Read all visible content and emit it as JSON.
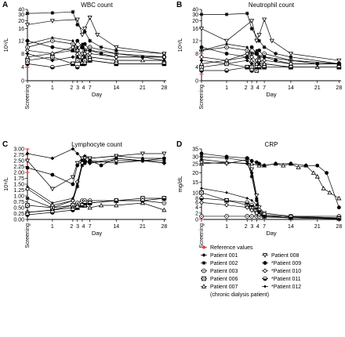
{
  "figure": {
    "panels": [
      "A",
      "B",
      "C",
      "D"
    ],
    "reference_label": "Reference values",
    "legend": [
      {
        "label": "Patient 001",
        "marker": "filled-diamond"
      },
      {
        "label": "Patient 002",
        "marker": "filled-star"
      },
      {
        "label": "Patient 003",
        "marker": "open-circle-dot"
      },
      {
        "label": "Patient 006",
        "marker": "open-square-x"
      },
      {
        "label": "Patient 007",
        "marker": "open-triangle",
        "note": "(chronic dialysis patient)"
      },
      {
        "label": "Patient 008",
        "marker": "open-down-triangle"
      },
      {
        "label": "*Patient 009",
        "marker": "filled-circle"
      },
      {
        "label": "*Patient 010",
        "marker": "open-diamond"
      },
      {
        "label": "*Patient 011",
        "marker": "half-circle"
      },
      {
        "label": "*Patient 012",
        "marker": "filled-small-diamond"
      }
    ],
    "colors": {
      "line": "#000000",
      "reference": "#e8413a"
    }
  },
  "chart_data": [
    {
      "panel": "A",
      "type": "line",
      "title": "WBC count",
      "ylabel": "10⁹/L",
      "xlabel": "Day",
      "x_ticks": [
        "Screening",
        "1",
        "2",
        "3",
        "4",
        "7",
        "14",
        "21",
        "28"
      ],
      "y_ticks": [
        "0",
        "4",
        "8",
        "12",
        "16",
        "20",
        "30",
        "40"
      ],
      "reference_range": [
        4,
        10
      ],
      "series": [
        {
          "x": [
            0,
            1,
            2,
            3,
            4,
            5,
            7,
            14,
            28
          ],
          "y": [
            8,
            6,
            7,
            7,
            6,
            7,
            7,
            6,
            6
          ]
        },
        {
          "x": [
            0,
            1,
            2,
            3,
            5,
            7,
            10,
            14,
            28
          ],
          "y": [
            32,
            33,
            35,
            18,
            15,
            12,
            10,
            9,
            8
          ]
        },
        {
          "x": [
            0,
            1,
            2,
            3,
            4,
            5,
            7,
            14,
            28
          ],
          "y": [
            10,
            12,
            11,
            9,
            10,
            9,
            10,
            8,
            7
          ]
        },
        {
          "x": [
            0,
            1,
            2,
            3,
            4,
            5,
            7,
            14,
            28
          ],
          "y": [
            6,
            7,
            5,
            6,
            5,
            6,
            6,
            5,
            5
          ]
        },
        {
          "x": [
            0,
            1,
            2,
            3,
            4,
            5,
            7,
            14,
            21,
            28
          ],
          "y": [
            7,
            8,
            9,
            8,
            7,
            8,
            7,
            6,
            6,
            6
          ]
        },
        {
          "x": [
            0,
            1,
            3,
            4,
            5,
            7,
            9,
            14,
            28
          ],
          "y": [
            18,
            20,
            22,
            14,
            16,
            25,
            14,
            10,
            8
          ]
        },
        {
          "x": [
            0,
            1,
            2,
            3,
            4,
            5,
            7,
            10,
            14,
            21,
            28
          ],
          "y": [
            12,
            10,
            9,
            12,
            10,
            11,
            9,
            8,
            7,
            7,
            7
          ]
        },
        {
          "x": [
            0,
            1,
            2,
            3,
            4,
            5,
            7,
            14,
            28
          ],
          "y": [
            9,
            8,
            10,
            9,
            8,
            8,
            8,
            7,
            7
          ]
        },
        {
          "x": [
            0,
            1,
            2,
            3,
            4,
            5,
            7,
            14,
            28
          ],
          "y": [
            5,
            4,
            5,
            4,
            5,
            5,
            6,
            5,
            5
          ]
        },
        {
          "x": [
            0,
            1,
            2,
            3,
            4,
            5,
            7,
            14,
            21,
            28
          ],
          "y": [
            11,
            13,
            12,
            10,
            11,
            9,
            9,
            8,
            7,
            6
          ]
        }
      ]
    },
    {
      "panel": "B",
      "type": "line",
      "title": "Neutrophil count",
      "ylabel": "10⁹/L",
      "xlabel": "Day",
      "x_ticks": [
        "Screening",
        "1",
        "2",
        "3",
        "4",
        "7",
        "14",
        "21",
        "28"
      ],
      "y_ticks": [
        "0",
        "4",
        "8",
        "12",
        "16",
        "20",
        "30",
        "40"
      ],
      "reference_range": [
        2,
        8
      ],
      "series": [
        {
          "x": [
            0,
            1,
            2,
            3,
            4,
            5,
            7,
            14,
            28
          ],
          "y": [
            6,
            5,
            6,
            5,
            5,
            5,
            5,
            4,
            4
          ]
        },
        {
          "x": [
            0,
            1,
            2,
            3,
            5,
            7,
            10,
            14,
            28
          ],
          "y": [
            30,
            30,
            32,
            16,
            12,
            10,
            8,
            7,
            5
          ]
        },
        {
          "x": [
            0,
            1,
            2,
            3,
            4,
            5,
            7,
            14,
            28
          ],
          "y": [
            9,
            10,
            9,
            8,
            8,
            7,
            8,
            6,
            5
          ]
        },
        {
          "x": [
            0,
            1,
            2,
            3,
            4,
            5,
            7,
            14,
            28
          ],
          "y": [
            4,
            5,
            4,
            4,
            3,
            4,
            4,
            4,
            4
          ]
        },
        {
          "x": [
            0,
            1,
            2,
            3,
            4,
            5,
            7,
            14,
            21,
            28
          ],
          "y": [
            5,
            6,
            7,
            6,
            5,
            6,
            5,
            4,
            4,
            4
          ]
        },
        {
          "x": [
            0,
            1,
            3,
            4,
            5,
            7,
            9,
            14,
            28
          ],
          "y": [
            16,
            12,
            20,
            12,
            14,
            22,
            12,
            8,
            6
          ]
        },
        {
          "x": [
            0,
            1,
            2,
            3,
            4,
            5,
            7,
            10,
            14,
            21,
            28
          ],
          "y": [
            10,
            8,
            7,
            10,
            8,
            9,
            7,
            6,
            5,
            5,
            5
          ]
        },
        {
          "x": [
            0,
            1,
            2,
            3,
            4,
            5,
            7,
            14,
            28
          ],
          "y": [
            7,
            6,
            8,
            7,
            6,
            6,
            6,
            5,
            5
          ]
        },
        {
          "x": [
            0,
            1,
            2,
            3,
            4,
            5,
            7,
            14,
            28
          ],
          "y": [
            3,
            3,
            4,
            3,
            4,
            4,
            4,
            4,
            4
          ]
        },
        {
          "x": [
            0,
            1,
            2,
            3,
            4,
            5,
            7,
            14,
            21,
            28
          ],
          "y": [
            9,
            11,
            10,
            8,
            9,
            7,
            7,
            6,
            5,
            5
          ]
        }
      ]
    },
    {
      "panel": "C",
      "type": "line",
      "title": "Lymphocyte count",
      "ylabel": "10⁹/L",
      "xlabel": "Day",
      "x_ticks": [
        "Screening",
        "1",
        "2",
        "3",
        "4",
        "7",
        "14",
        "21",
        "28"
      ],
      "y_ticks": [
        "0.00",
        "0.25",
        "0.50",
        "0.75",
        "1.00",
        "1.25",
        "1.50",
        "1.75",
        "2.00",
        "2.25",
        "2.50",
        "2.75",
        "3.00"
      ],
      "reference_range": [
        2.0,
        3.0
      ],
      "series": [
        {
          "x": [
            0,
            1,
            2,
            3,
            4,
            5,
            7,
            14,
            21,
            28
          ],
          "y": [
            2.8,
            2.6,
            3.0,
            2.8,
            2.6,
            2.7,
            2.6,
            2.7,
            2.6,
            2.6
          ]
        },
        {
          "x": [
            0,
            1,
            2,
            3,
            4,
            5,
            7,
            14,
            21,
            28
          ],
          "y": [
            0.9,
            0.5,
            0.8,
            1.4,
            2.3,
            2.4,
            2.5,
            2.4,
            2.5,
            2.5
          ]
        },
        {
          "x": [
            0,
            1,
            2,
            3,
            4,
            5,
            7,
            14,
            21,
            28
          ],
          "y": [
            0.3,
            0.4,
            0.6,
            0.7,
            0.8,
            0.8,
            0.8,
            0.8,
            0.8,
            0.7
          ]
        },
        {
          "x": [
            0,
            1,
            2,
            3,
            4,
            5,
            7,
            14,
            21,
            28
          ],
          "y": [
            0.6,
            0.5,
            0.6,
            0.5,
            0.6,
            0.6,
            0.7,
            0.8,
            0.9,
            0.9
          ]
        },
        {
          "x": [
            0,
            1,
            2,
            3,
            4,
            5,
            7,
            10,
            14,
            21,
            28
          ],
          "y": [
            0.3,
            0.4,
            0.5,
            0.6,
            0.6,
            0.6,
            0.5,
            0.6,
            0.6,
            0.7,
            0.4
          ]
        },
        {
          "x": [
            0,
            1,
            2,
            3,
            4,
            5,
            7,
            14,
            21,
            28
          ],
          "y": [
            2.5,
            1.3,
            1.8,
            2.4,
            2.6,
            2.6,
            2.6,
            2.7,
            2.8,
            2.8
          ]
        },
        {
          "x": [
            0,
            1,
            2,
            3,
            4,
            5,
            7,
            10,
            14,
            21,
            28
          ],
          "y": [
            2.2,
            1.9,
            1.5,
            2.3,
            2.5,
            2.4,
            2.5,
            2.3,
            2.6,
            2.5,
            2.6
          ]
        },
        {
          "x": [
            0,
            1,
            2,
            3,
            4,
            5,
            7,
            14,
            21,
            28
          ],
          "y": [
            1.3,
            0.6,
            0.8,
            1.6,
            2.4,
            2.5,
            2.4,
            2.5,
            2.5,
            2.4
          ]
        },
        {
          "x": [
            0,
            1,
            2,
            3,
            4,
            5,
            7,
            14,
            21,
            28
          ],
          "y": [
            0.2,
            0.3,
            0.4,
            0.5,
            0.6,
            0.7,
            0.7,
            0.8,
            0.8,
            0.9
          ]
        },
        {
          "x": [
            0,
            1,
            2,
            3,
            4,
            5,
            7,
            14,
            21,
            28
          ],
          "y": [
            1.4,
            0.7,
            0.9,
            1.5,
            2.3,
            2.5,
            2.4,
            2.6,
            2.5,
            2.4
          ]
        }
      ]
    },
    {
      "panel": "D",
      "type": "line",
      "title": "CRP",
      "ylabel": "mg/dL",
      "xlabel": "Day",
      "x_ticks": [
        "Screening",
        "1",
        "2",
        "3",
        "4",
        "7",
        "14",
        "21",
        "28"
      ],
      "y_ticks": [
        "0",
        "2",
        "4",
        "6",
        "8",
        "10",
        "15",
        "20",
        "25",
        "30",
        "35"
      ],
      "reference_range": [
        0,
        0.5
      ],
      "series": [
        {
          "x": [
            0,
            1,
            2,
            3,
            4,
            5,
            7,
            14,
            28
          ],
          "y": [
            28,
            26,
            25,
            20,
            8,
            3,
            1,
            0.5,
            0.3
          ]
        },
        {
          "x": [
            0,
            1,
            2,
            3,
            4,
            5,
            7,
            14,
            28
          ],
          "y": [
            30,
            29,
            27,
            18,
            7,
            2,
            0.8,
            0.5,
            0.2
          ]
        },
        {
          "x": [
            0,
            1,
            2,
            3,
            4,
            5,
            7,
            14,
            28
          ],
          "y": [
            1,
            1,
            1,
            1,
            1,
            1,
            1,
            1,
            1
          ]
        },
        {
          "x": [
            0,
            1,
            2,
            3,
            4,
            5,
            7,
            14,
            28
          ],
          "y": [
            10,
            7,
            5,
            4,
            3,
            2,
            1,
            0.5,
            0.3
          ]
        },
        {
          "x": [
            0,
            1,
            3,
            5,
            7,
            10,
            12,
            14,
            16,
            18,
            20,
            21,
            23,
            25,
            28
          ],
          "y": [
            25,
            26,
            25,
            24,
            24,
            25,
            24,
            25,
            23,
            24,
            20,
            18,
            12,
            10,
            8
          ]
        },
        {
          "x": [
            0,
            1,
            2,
            3,
            4,
            5,
            7,
            14,
            28
          ],
          "y": [
            26,
            25,
            28,
            22,
            9,
            4,
            2,
            1,
            0.5
          ]
        },
        {
          "x": [
            0,
            1,
            2,
            3,
            4,
            5,
            7,
            10,
            14,
            18,
            21,
            24,
            28
          ],
          "y": [
            32,
            30,
            29,
            27,
            26,
            25,
            24,
            25,
            25,
            24,
            24,
            20,
            4
          ]
        },
        {
          "x": [
            0,
            1,
            2,
            3,
            4,
            5,
            7,
            14,
            28
          ],
          "y": [
            6,
            5,
            4,
            3,
            2,
            1.5,
            1,
            0.5,
            0.3
          ]
        },
        {
          "x": [
            0,
            1,
            2,
            3,
            4,
            5,
            7,
            14,
            28
          ],
          "y": [
            8,
            7,
            6,
            5,
            4,
            3,
            1.5,
            0.8,
            0.3
          ]
        },
        {
          "x": [
            0,
            1,
            2,
            3,
            4,
            5,
            7,
            14,
            28
          ],
          "y": [
            12,
            10,
            8,
            7,
            5,
            2,
            1,
            0.5,
            0.2
          ]
        }
      ]
    }
  ]
}
